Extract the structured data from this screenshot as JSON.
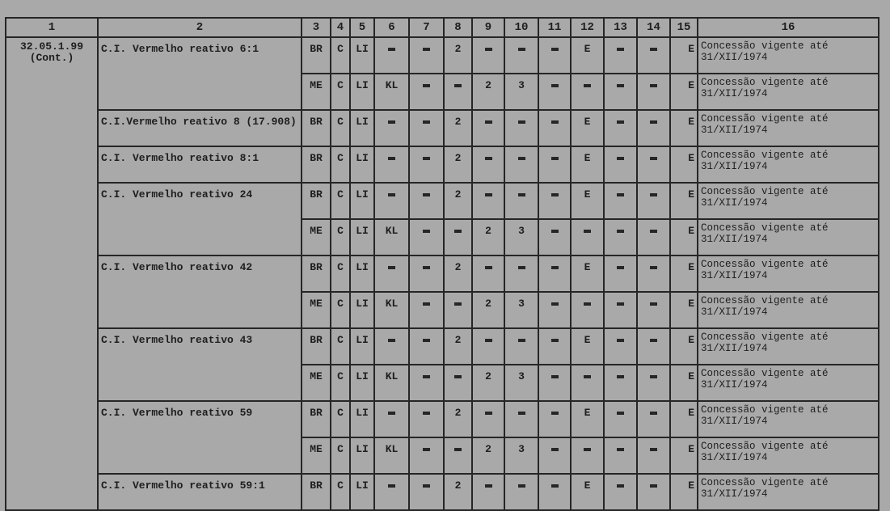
{
  "headers": [
    "1",
    "2",
    "3",
    "4",
    "5",
    "6",
    "7",
    "8",
    "9",
    "10",
    "11",
    "12",
    "13",
    "14",
    "15",
    "16"
  ],
  "code": {
    "number": "32.05.1.99",
    "note": "(Cont.)"
  },
  "groups": [
    {
      "name": "C.I. Vermelho reativo 6:1",
      "rows": [
        [
          "BR",
          "C",
          "LI",
          "-",
          "-",
          "2",
          "-",
          "-",
          "-",
          "E",
          "-",
          "-",
          "E",
          "Concessão vigente até",
          "31/XII/1974"
        ],
        [
          "ME",
          "C",
          "LI",
          "KL",
          "-",
          "-",
          "2",
          "3",
          "-",
          "-",
          "-",
          "-",
          "E",
          "Concessão vigente até",
          "31/XII/1974"
        ]
      ]
    },
    {
      "name": "C.I.Vermelho reativo 8 (17.908)",
      "rows": [
        [
          "BR",
          "C",
          "LI",
          "-",
          "-",
          "2",
          "-",
          "-",
          "-",
          "E",
          "-",
          "-",
          "E",
          "Concessão vigente até",
          "31/XII/1974"
        ]
      ]
    },
    {
      "name": "C.I. Vermelho reativo 8:1",
      "rows": [
        [
          "BR",
          "C",
          "LI",
          "-",
          "-",
          "2",
          "-",
          "-",
          "-",
          "E",
          "-",
          "-",
          "E",
          "Concessão vigente até",
          "31/XII/1974"
        ]
      ]
    },
    {
      "name": "C.I. Vermelho reativo 24",
      "rows": [
        [
          "BR",
          "C",
          "LI",
          "-",
          "-",
          "2",
          "-",
          "-",
          "-",
          "E",
          "-",
          "-",
          "E",
          "Concessão vigente até",
          "31/XII/1974"
        ],
        [
          "ME",
          "C",
          "LI",
          "KL",
          "-",
          "-",
          "2",
          "3",
          "-",
          "-",
          "-",
          "-",
          "E",
          "Concessão vigente até",
          "31/XII/1974"
        ]
      ]
    },
    {
      "name": "C.I. Vermelho reativo 42",
      "rows": [
        [
          "BR",
          "C",
          "LI",
          "-",
          "-",
          "2",
          "-",
          "-",
          "-",
          "E",
          "-",
          "-",
          "E",
          "Concessão vigente até",
          "31/XII/1974"
        ],
        [
          "ME",
          "C",
          "LI",
          "KL",
          "-",
          "-",
          "2",
          "3",
          "-",
          "-",
          "-",
          "-",
          "E",
          "Concessão vigente até",
          "31/XII/1974"
        ]
      ]
    },
    {
      "name": "C.I. Vermelho reativo 43",
      "rows": [
        [
          "BR",
          "C",
          "LI",
          "-",
          "-",
          "2",
          "-",
          "-",
          "-",
          "E",
          "-",
          "-",
          "E",
          "Concessão vigente até",
          "31/XII/1974"
        ],
        [
          "ME",
          "C",
          "LI",
          "KL",
          "-",
          "-",
          "2",
          "3",
          "-",
          "-",
          "-",
          "-",
          "E",
          "Concessão vigente até",
          "31/XII/1974"
        ]
      ]
    },
    {
      "name": "C.I. Vermelho reativo 59",
      "rows": [
        [
          "BR",
          "C",
          "LI",
          "-",
          "-",
          "2",
          "-",
          "-",
          "-",
          "E",
          "-",
          "-",
          "E",
          "Concessão vigente até",
          "31/XII/1974"
        ],
        [
          "ME",
          "C",
          "LI",
          "KL",
          "-",
          "-",
          "2",
          "3",
          "-",
          "-",
          "-",
          "-",
          "E",
          "Concessão vigente até",
          "31/XII/1974"
        ]
      ]
    },
    {
      "name": "C.I. Vermelho reativo 59:1",
      "rows": [
        [
          "BR",
          "C",
          "LI",
          "-",
          "-",
          "2",
          "-",
          "-",
          "-",
          "E",
          "-",
          "-",
          "E",
          "Concessão vigente até",
          "31/XII/1974"
        ]
      ]
    }
  ]
}
